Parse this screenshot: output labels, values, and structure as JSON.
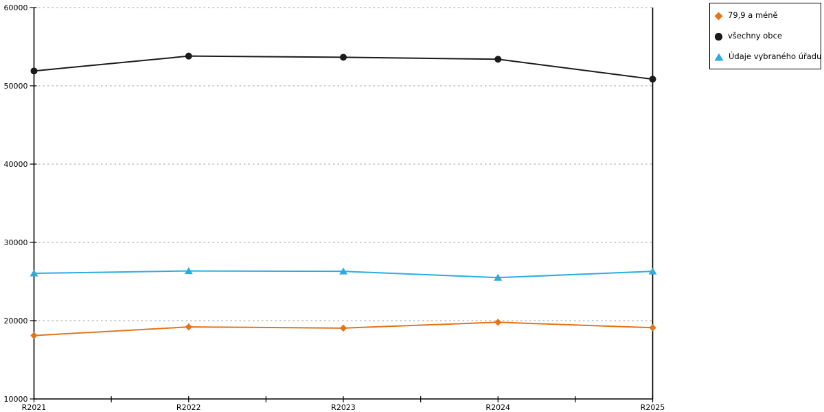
{
  "chart_data": {
    "type": "line",
    "title": "",
    "xlabel": "",
    "ylabel": "",
    "categories": [
      "R2021",
      "R2022",
      "R2023",
      "R2024",
      "R2025"
    ],
    "series": [
      {
        "name": "79,9 a méně",
        "marker": "diamond",
        "color": "#E2741B",
        "values": [
          18100,
          19200,
          19050,
          19800,
          19100
        ]
      },
      {
        "name": "všechny obce",
        "marker": "circle",
        "color": "#1A1A1A",
        "values": [
          51900,
          53800,
          53650,
          53400,
          50850
        ]
      },
      {
        "name": "Údaje vybraného úřadu",
        "marker": "triangle",
        "color": "#29ACE3",
        "values": [
          26050,
          26350,
          26300,
          25500,
          26300
        ]
      }
    ],
    "ylim": [
      10000,
      60000
    ],
    "y_ticks": [
      10000,
      20000,
      30000,
      40000,
      50000,
      60000
    ],
    "minor_x_ticks_between_categories": 1,
    "grid": "horizontal-dotted",
    "grid_color": "#AFAFAF",
    "axis_color": "#000000",
    "tick_label_color": "#000000",
    "legend_position": "top-right"
  }
}
